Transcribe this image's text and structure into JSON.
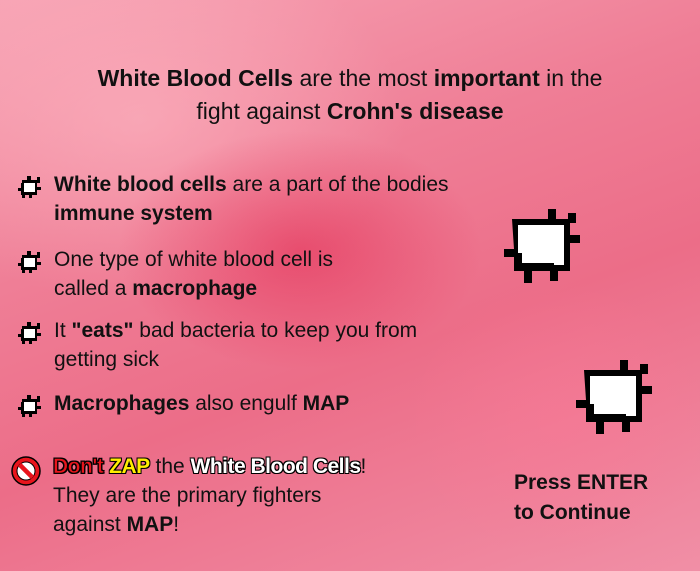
{
  "title": {
    "line1_a": "White Blood Cells",
    "line1_b": " are the most ",
    "line1_c": "important",
    "line1_d": " in the",
    "line2_a": "fight against ",
    "line2_b": "Crohn's disease"
  },
  "bullets": [
    {
      "l1_bold": "White blood cells",
      "l1_rest": " are a part of the bodies",
      "l2_bold": "immune system"
    },
    {
      "l1": "One type of white blood cell is",
      "l2_pre": "called a ",
      "l2_bold": "macrophage"
    },
    {
      "l1_pre": "It ",
      "l1_bold": "\"eats\"",
      "l1_rest": " bad bacteria to keep you from",
      "l2": "getting sick"
    },
    {
      "l1_bold": "Macrophages",
      "l1_mid": " also engulf ",
      "l1_bold2": "MAP"
    }
  ],
  "warning": {
    "dont": "Don't",
    "zap": "ZAP",
    "the": " the ",
    "wbc": "White Blood Cells",
    "excl": "!",
    "line2": "They are the primary fighters",
    "line3_pre": "against ",
    "line3_bold": "MAP",
    "line3_end": "!"
  },
  "prompt": {
    "line1": "Press ENTER",
    "line2": "to Continue"
  },
  "icons": {
    "bullet": "macrophage-bullet-icon",
    "warning": "no-sign-icon",
    "sprite": "white-blood-cell-sprite"
  },
  "colors": {
    "warning_red": "#e8141c",
    "zap_yellow": "#ffee00",
    "cell_fill": "#ffffff",
    "outline": "#000000"
  }
}
